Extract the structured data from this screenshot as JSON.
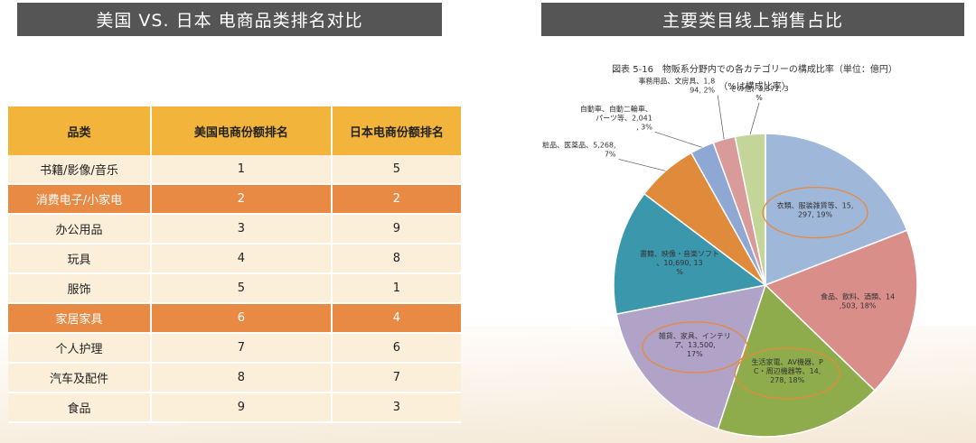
{
  "left_banner": "美国 VS. 日本 电商品类排名对比",
  "right_banner": "主要类目线上销售占比",
  "table": {
    "headers": [
      "品类",
      "美国电商份额排名",
      "日本电商份额排名"
    ],
    "rows": [
      {
        "cat": "书籍/影像/音乐",
        "us": "1",
        "jp": "5",
        "highlight": false
      },
      {
        "cat": "消费电子/小家电",
        "us": "2",
        "jp": "2",
        "highlight": true
      },
      {
        "cat": "办公用品",
        "us": "3",
        "jp": "9",
        "highlight": false
      },
      {
        "cat": "玩具",
        "us": "4",
        "jp": "8",
        "highlight": false
      },
      {
        "cat": "服饰",
        "us": "5",
        "jp": "1",
        "highlight": false
      },
      {
        "cat": "家居家具",
        "us": "6",
        "jp": "4",
        "highlight": true
      },
      {
        "cat": "个人护理",
        "us": "7",
        "jp": "6",
        "highlight": false
      },
      {
        "cat": "汽车及配件",
        "us": "8",
        "jp": "7",
        "highlight": false
      },
      {
        "cat": "食品",
        "us": "9",
        "jp": "3",
        "highlight": false
      }
    ]
  },
  "chart_data": {
    "type": "pie",
    "title": "図表 5-16　物販系分野内での各カテゴリーの構成比率（単位：億円）",
    "subtitle": "（%は構成比率）",
    "slices": [
      {
        "label": "衣類、服装雑貨等、15,297, 19%",
        "value": 15297,
        "percent": 19,
        "color": "#9fb7d9",
        "circled": true
      },
      {
        "label": "食品、飲料、酒類、14,503, 18%",
        "value": 14503,
        "percent": 18,
        "color": "#d98e8a",
        "circled": false
      },
      {
        "label": "生活家電、AV機器、PC・周辺機器等、14,278, 18%",
        "value": 14278,
        "percent": 18,
        "color": "#8eac4b",
        "circled": true
      },
      {
        "label": "雑貨、家具、インテリア、13,500, 17%",
        "value": 13500,
        "percent": 17,
        "color": "#b1a2c8",
        "circled": true
      },
      {
        "label": "書籍、映像・音楽ソフト、10,690, 13%",
        "value": 10690,
        "percent": 13,
        "color": "#3b97ab",
        "circled": false
      },
      {
        "label": "化粧品、医薬品、5,268, 7%",
        "value": 5268,
        "percent": 7,
        "color": "#e08a3b",
        "circled": false
      },
      {
        "label": "自動車、自動二輪車、パーツ等、2,041, 3%",
        "value": 2041,
        "percent": 3,
        "color": "#8ea8d3",
        "circled": false
      },
      {
        "label": "事務用品、文房具、1,894, 2%",
        "value": 1894,
        "percent": 2,
        "color": "#d99a9a",
        "circled": false
      },
      {
        "label": "その他、2,572, 3%",
        "value": 2572,
        "percent": 3,
        "color": "#c4d59a",
        "circled": false
      }
    ]
  }
}
